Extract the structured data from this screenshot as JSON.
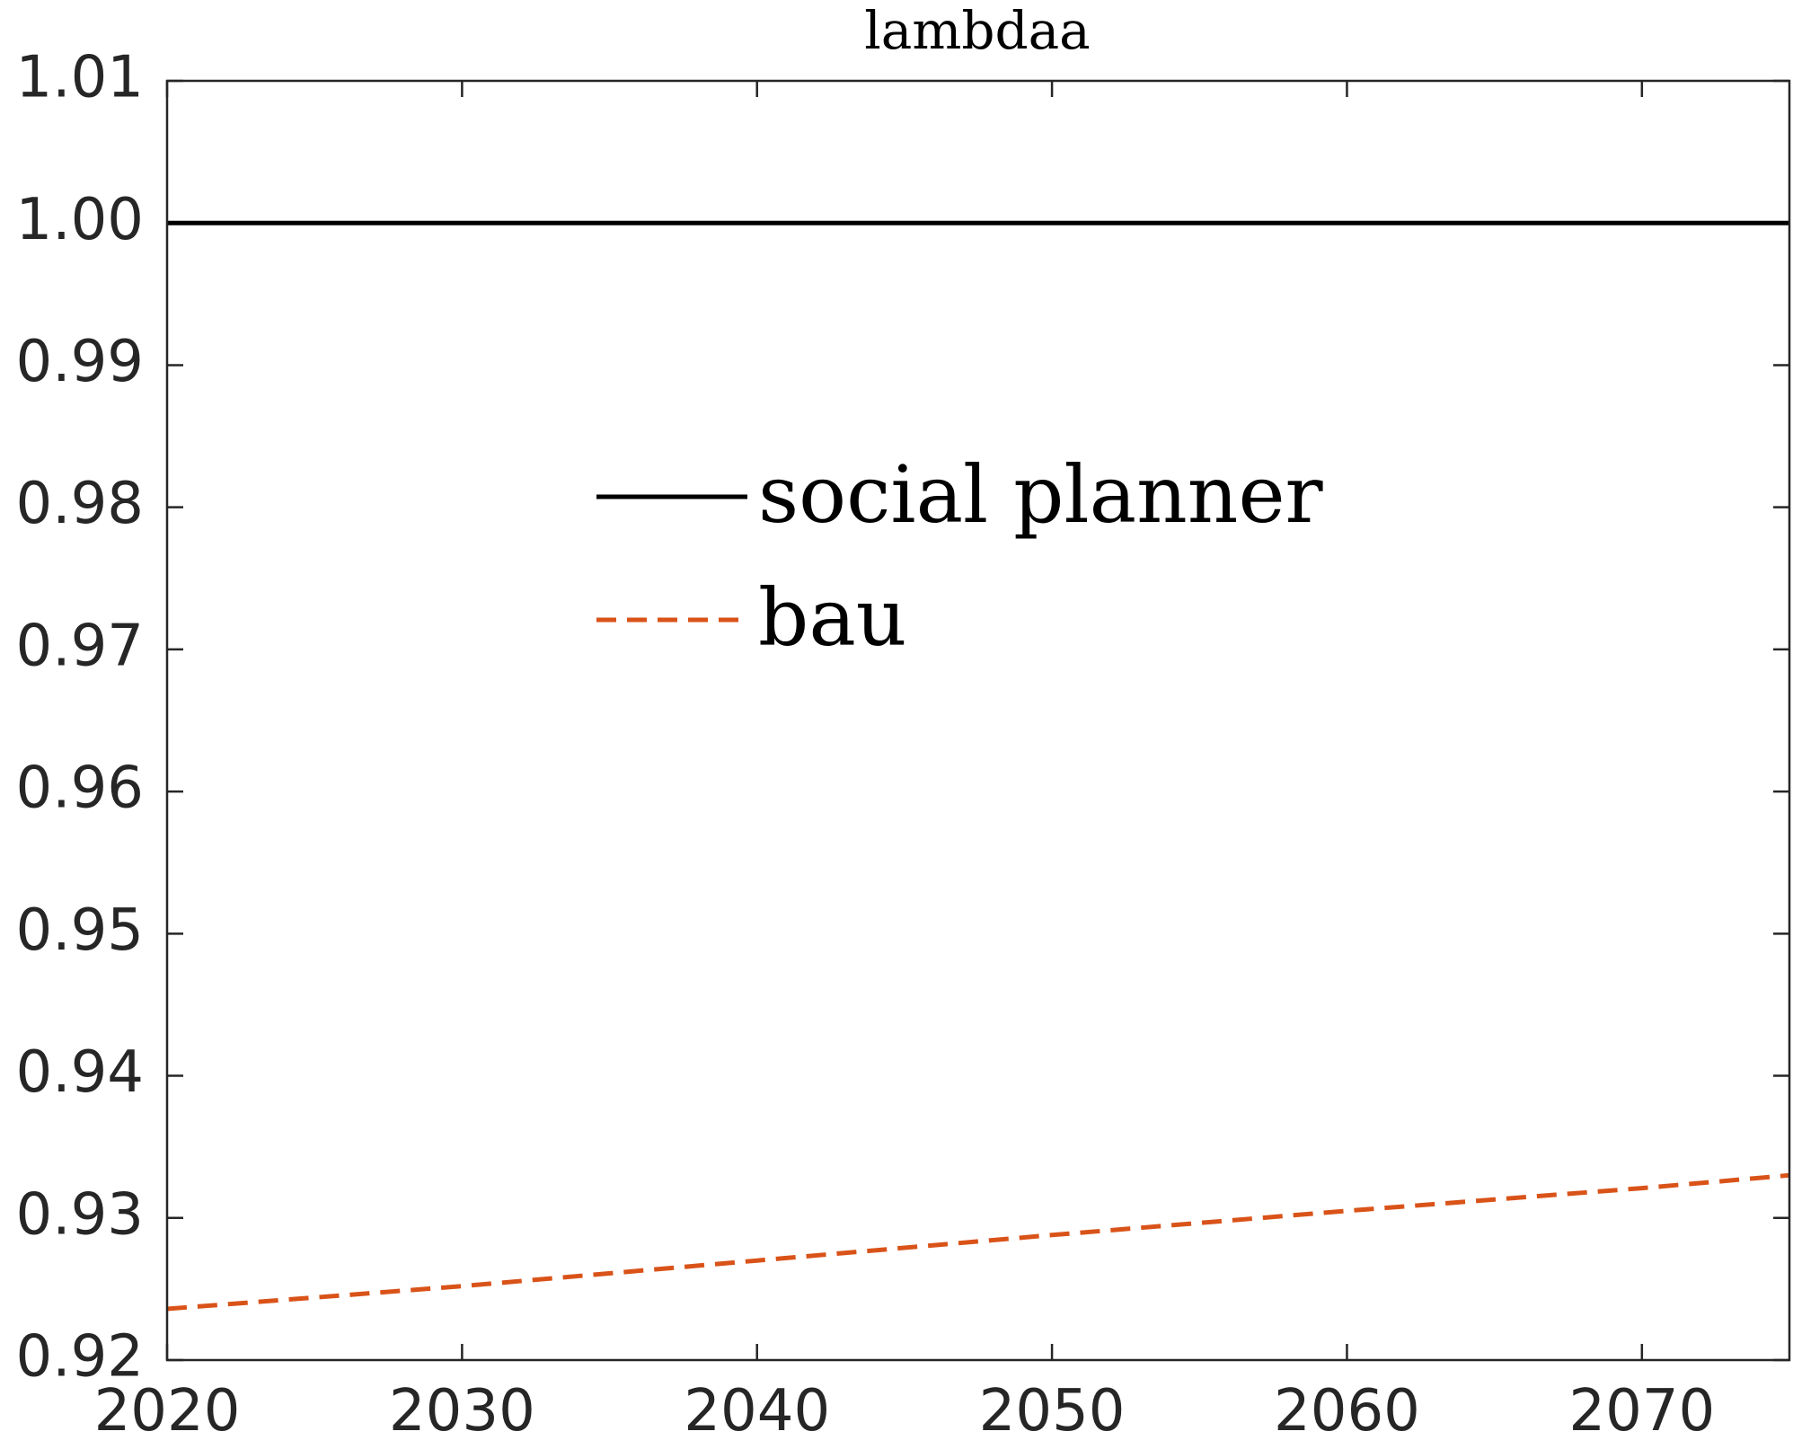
{
  "chart_data": {
    "type": "line",
    "title": "lambdaa",
    "xlabel": "",
    "ylabel": "",
    "xlim": [
      2020,
      2075
    ],
    "ylim": [
      0.92,
      1.01
    ],
    "xticks": [
      2020,
      2030,
      2040,
      2050,
      2060,
      2070
    ],
    "xtick_labels": [
      "2020",
      "2030",
      "2040",
      "2050",
      "2060",
      "2070"
    ],
    "yticks": [
      0.92,
      0.93,
      0.94,
      0.95,
      0.96,
      0.97,
      0.98,
      0.99,
      1.0,
      1.01
    ],
    "ytick_labels": [
      "0.92",
      "0.93",
      "0.94",
      "0.95",
      "0.96",
      "0.97",
      "0.98",
      "0.99",
      "1.00",
      "1.01"
    ],
    "grid": false,
    "legend_position": "upper-center",
    "series": [
      {
        "name": "social planner",
        "color": "#000000",
        "line_style": "solid",
        "x": [
          2020,
          2030,
          2040,
          2050,
          2060,
          2070,
          2075
        ],
        "y": [
          1.0,
          1.0,
          1.0,
          1.0,
          1.0,
          1.0,
          1.0
        ]
      },
      {
        "name": "bau",
        "color": "#D95319",
        "line_style": "dashed",
        "x": [
          2020,
          2030,
          2040,
          2050,
          2060,
          2070,
          2075
        ],
        "y": [
          0.9236,
          0.9252,
          0.927,
          0.9288,
          0.9305,
          0.9321,
          0.933
        ]
      }
    ]
  }
}
